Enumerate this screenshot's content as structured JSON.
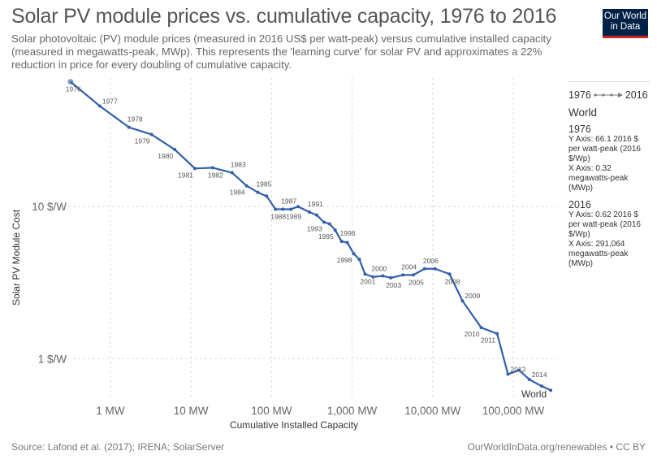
{
  "header": {
    "title": "Solar PV module prices vs. cumulative capacity, 1976 to 2016",
    "subtitle": "Solar photovoltaic (PV) module prices (measured in 2016 US$ per watt-peak) versus cumulative installed capacity (measured in megawatts-peak, MWp). This represents the 'learning curve' for solar PV and approximates a 22% reduction in price for every doubling of cumulative capacity.",
    "logo_line1": "Our World",
    "logo_line2": "in Data"
  },
  "legend": {
    "range_start": "1976",
    "range_end": "2016",
    "entity": "World",
    "start": {
      "year": "1976",
      "y_text": "Y Axis: 66.1 2016 $ per watt-peak (2016 $/Wp)",
      "x_text": "X Axis: 0.32 megawatts-peak (MWp)"
    },
    "end": {
      "year": "2016",
      "y_text": "Y Axis: 0.62 2016 $ per watt-peak (2016 $/Wp)",
      "x_text": "X Axis: 291,064 megawatts-peak (MWp)"
    }
  },
  "footer": {
    "source": "Source: Lafond et al. (2017); IRENA; SolarServer",
    "url": "OurWorldInData.org/renewables • CC BY"
  },
  "colors": {
    "line": "#3360a9",
    "grid": "#dddddd"
  },
  "chart_data": {
    "type": "scatter",
    "connected": true,
    "title": "Solar PV module prices vs. cumulative capacity, 1976 to 2016",
    "xlabel": "Cumulative Installed Capacity",
    "ylabel": "Solar PV Module Cost",
    "xscale": "log",
    "yscale": "log",
    "xlim": [
      0.3,
      350000
    ],
    "ylim": [
      0.55,
      70
    ],
    "x_ticks": [
      {
        "value": 1,
        "label": "1 MW"
      },
      {
        "value": 10,
        "label": "10 MW"
      },
      {
        "value": 100,
        "label": "100 MW"
      },
      {
        "value": 1000,
        "label": "1,000 MW"
      },
      {
        "value": 10000,
        "label": "10,000 MW"
      },
      {
        "value": 100000,
        "label": "100,000 MW"
      }
    ],
    "y_ticks": [
      {
        "value": 1,
        "label": "1 $/W"
      },
      {
        "value": 10,
        "label": "10 $/W"
      }
    ],
    "grid": true,
    "series_label": "World",
    "series": [
      {
        "name": "World",
        "points": [
          {
            "year": "1976",
            "x": 0.32,
            "y": 66.1,
            "label": true,
            "lpos": "below"
          },
          {
            "year": "1977",
            "x": 0.74,
            "y": 45.8,
            "label": true,
            "lpos": "right"
          },
          {
            "year": "1978",
            "x": 1.7,
            "y": 33.2,
            "label": true,
            "lpos": "above"
          },
          {
            "year": "1979",
            "x": 3.24,
            "y": 29.8,
            "label": true,
            "lpos": "belowleft"
          },
          {
            "year": "1980",
            "x": 6.3,
            "y": 23.7,
            "label": true,
            "lpos": "belowleft"
          },
          {
            "year": "1981",
            "x": 11.2,
            "y": 17.8,
            "label": true,
            "lpos": "belowleft"
          },
          {
            "year": "1982",
            "x": 18.6,
            "y": 18.0,
            "label": true,
            "lpos": "below"
          },
          {
            "year": "1983",
            "x": 32.4,
            "y": 16.7,
            "label": true,
            "lpos": "above"
          },
          {
            "year": "1984",
            "x": 49,
            "y": 13.7,
            "label": true,
            "lpos": "belowleft"
          },
          {
            "year": "1985",
            "x": 67.6,
            "y": 12.4,
            "label": true,
            "lpos": "above"
          },
          {
            "year": "1986",
            "x": 87,
            "y": 11.7,
            "label": false
          },
          {
            "year": "1988",
            "x": 112,
            "y": 9.6,
            "label": true,
            "lpos": "below"
          },
          {
            "year": "1987",
            "x": 138,
            "y": 9.6,
            "label": true,
            "lpos": "above"
          },
          {
            "year": "1989",
            "x": 174,
            "y": 9.6,
            "label": true,
            "lpos": "below"
          },
          {
            "year": "1990",
            "x": 214,
            "y": 10.0,
            "label": false
          },
          {
            "year": "1991",
            "x": 295,
            "y": 9.2,
            "label": true,
            "lpos": "above"
          },
          {
            "year": "1992",
            "x": 363,
            "y": 8.8,
            "label": false
          },
          {
            "year": "1993",
            "x": 447,
            "y": 7.9,
            "label": true,
            "lpos": "belowleft"
          },
          {
            "year": "1994",
            "x": 525,
            "y": 7.7,
            "label": false
          },
          {
            "year": "1995",
            "x": 617,
            "y": 7.0,
            "label": true,
            "lpos": "belowleft"
          },
          {
            "year": "1996",
            "x": 741,
            "y": 5.9,
            "label": true,
            "lpos": "above"
          },
          {
            "year": "1997",
            "x": 871,
            "y": 5.8,
            "label": false
          },
          {
            "year": "1998",
            "x": 1047,
            "y": 4.9,
            "label": true,
            "lpos": "belowleft"
          },
          {
            "year": "1999",
            "x": 1230,
            "y": 4.5,
            "label": false
          },
          {
            "year": "2001",
            "x": 1445,
            "y": 3.6,
            "label": true,
            "lpos": "below"
          },
          {
            "year": "2000",
            "x": 1820,
            "y": 3.45,
            "label": true,
            "lpos": "above"
          },
          {
            "year": "2002",
            "x": 2400,
            "y": 3.5,
            "label": false
          },
          {
            "year": "2003",
            "x": 3020,
            "y": 3.4,
            "label": true,
            "lpos": "below"
          },
          {
            "year": "2004",
            "x": 4270,
            "y": 3.55,
            "label": true,
            "lpos": "above"
          },
          {
            "year": "2005",
            "x": 5750,
            "y": 3.55,
            "label": true,
            "lpos": "below"
          },
          {
            "year": "2006",
            "x": 7940,
            "y": 3.9,
            "label": true,
            "lpos": "above"
          },
          {
            "year": "2007",
            "x": 10700,
            "y": 3.9,
            "label": false
          },
          {
            "year": "2008",
            "x": 16200,
            "y": 3.6,
            "label": true,
            "lpos": "below"
          },
          {
            "year": "2009",
            "x": 23400,
            "y": 2.4,
            "label": true,
            "lpos": "right"
          },
          {
            "year": "2010",
            "x": 40000,
            "y": 1.6,
            "label": true,
            "lpos": "belowleft"
          },
          {
            "year": "2011",
            "x": 63000,
            "y": 1.46,
            "label": true,
            "lpos": "belowleft"
          },
          {
            "year": "2012",
            "x": 86000,
            "y": 0.79,
            "label": true,
            "lpos": "right"
          },
          {
            "year": "2013",
            "x": 118000,
            "y": 0.84,
            "label": false
          },
          {
            "year": "2014",
            "x": 158000,
            "y": 0.73,
            "label": true,
            "lpos": "right"
          },
          {
            "year": "2015",
            "x": 225000,
            "y": 0.66,
            "label": false
          },
          {
            "year": "2016",
            "x": 291064,
            "y": 0.62,
            "label": false
          }
        ]
      }
    ]
  }
}
